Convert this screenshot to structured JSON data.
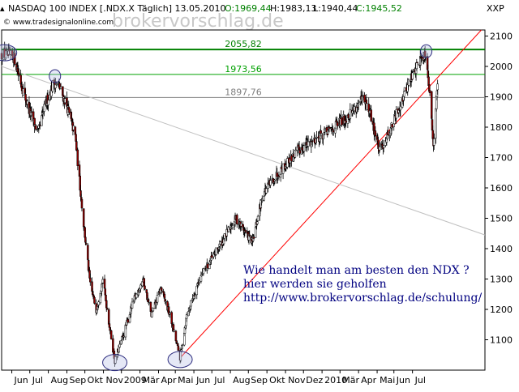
{
  "header": {
    "title": "NASDAQ 100 INDEX [.NDX.X  Täglich] 13.05.2010",
    "open": "O:1969,44",
    "high": "H:1983,13",
    "low": "L:1940,44",
    "close": "C:1945,52",
    "currency": "XXP",
    "copyright": "© www.tradesignalonline.com",
    "watermark": "brokervorschlag.de"
  },
  "promo": {
    "line1": "Wie handelt man am besten den NDX ?",
    "line2": "hier werden sie geholfen",
    "line3": "http://www.brokervorschlag.de/schulung/"
  },
  "chart_data": {
    "type": "candlestick",
    "ylim": [
      1000,
      2120
    ],
    "y_ticks": [
      1100,
      1200,
      1300,
      1400,
      1500,
      1600,
      1700,
      1800,
      1900,
      2000,
      2100
    ],
    "x_labels": [
      "Jun",
      "Jul",
      "Aug",
      "Sep",
      "Okt",
      "Nov",
      "2009",
      "Mär",
      "Apr",
      "Mai",
      "Jun",
      "Jul",
      "Aug",
      "Sep",
      "Okt",
      "Nov",
      "Dez",
      "2010",
      "Mär",
      "Apr",
      "Mai",
      "Jun",
      "Jul"
    ],
    "levels": [
      {
        "value": 2055.82,
        "label": "2055,82",
        "color": "#008000"
      },
      {
        "value": 1973.56,
        "label": "1973,56",
        "color": "#00a000"
      },
      {
        "value": 1897.76,
        "label": "1897,76",
        "color": "#808080"
      }
    ],
    "colors": {
      "up": "#ffffff",
      "down": "#8b0000",
      "trend_up": "#ff0000",
      "trend_down": "#c0c0c0"
    },
    "path": [
      [
        "2008-05-15",
        2040
      ],
      [
        "2008-06-05",
        2030
      ],
      [
        "2008-06-20",
        1920
      ],
      [
        "2008-07-01",
        1850
      ],
      [
        "2008-07-15",
        1780
      ],
      [
        "2008-07-25",
        1860
      ],
      [
        "2008-08-10",
        1950
      ],
      [
        "2008-08-20",
        1930
      ],
      [
        "2008-09-01",
        1870
      ],
      [
        "2008-09-15",
        1770
      ],
      [
        "2008-09-29",
        1480
      ],
      [
        "2008-10-10",
        1280
      ],
      [
        "2008-10-20",
        1200
      ],
      [
        "2008-10-31",
        1300
      ],
      [
        "2008-11-10",
        1160
      ],
      [
        "2008-11-20",
        1030
      ],
      [
        "2008-12-05",
        1120
      ],
      [
        "2008-12-20",
        1220
      ],
      [
        "2009-01-06",
        1300
      ],
      [
        "2009-01-20",
        1180
      ],
      [
        "2009-02-05",
        1270
      ],
      [
        "2009-02-20",
        1180
      ],
      [
        "2009-03-09",
        1040
      ],
      [
        "2009-03-20",
        1180
      ],
      [
        "2009-04-10",
        1300
      ],
      [
        "2009-05-05",
        1380
      ],
      [
        "2009-06-10",
        1500
      ],
      [
        "2009-07-08",
        1420
      ],
      [
        "2009-07-25",
        1580
      ],
      [
        "2009-08-20",
        1650
      ],
      [
        "2009-09-20",
        1720
      ],
      [
        "2009-10-20",
        1760
      ],
      [
        "2009-11-15",
        1790
      ],
      [
        "2009-12-10",
        1830
      ],
      [
        "2010-01-08",
        1890
      ],
      [
        "2010-01-20",
        1850
      ],
      [
        "2010-02-05",
        1720
      ],
      [
        "2010-02-25",
        1800
      ],
      [
        "2010-03-20",
        1920
      ],
      [
        "2010-04-10",
        2010
      ],
      [
        "2010-04-24",
        2050
      ],
      [
        "2010-05-06",
        1750
      ],
      [
        "2010-05-13",
        1945
      ]
    ],
    "trendlines": [
      {
        "from": [
          "2009-03-09",
          1040
        ],
        "to": [
          "2010-07-25",
          2120
        ],
        "color": "#ff0000"
      },
      {
        "from": [
          "2008-05-15",
          2000
        ],
        "to": [
          "2010-07-31",
          1445
        ],
        "color": "#c0c0c0"
      }
    ],
    "highlights": [
      {
        "date": "2008-05-20",
        "value": 2045
      },
      {
        "date": "2008-08-12",
        "value": 1968
      },
      {
        "date": "2010-04-24",
        "value": 2050
      },
      {
        "date": "2008-11-20",
        "value": 1025
      },
      {
        "date": "2009-03-09",
        "value": 1035
      }
    ]
  }
}
